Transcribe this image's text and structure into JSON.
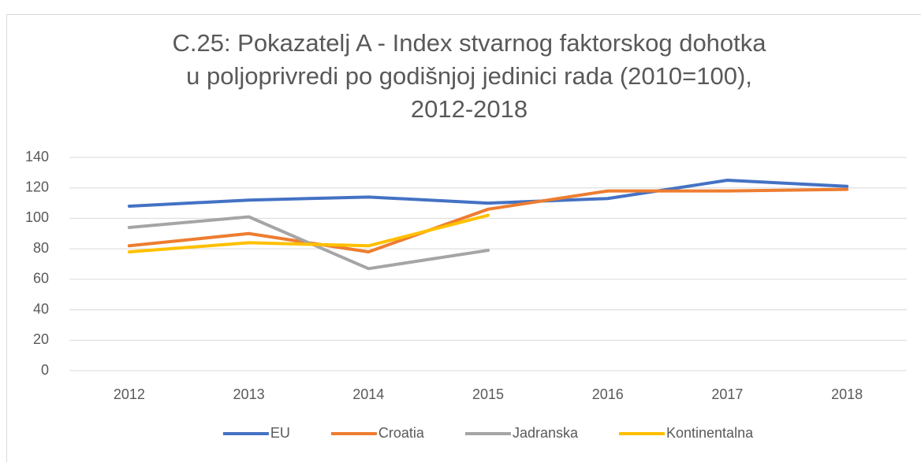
{
  "chart_data": {
    "type": "line",
    "title": "C.25: Pokazatelj A - Index stvarnog faktorskog dohotka u poljoprivredi po godišnjoj jedinici rada (2010=100), 2012-2018",
    "categories": [
      "2012",
      "2013",
      "2014",
      "2015",
      "2016",
      "2017",
      "2018"
    ],
    "series": [
      {
        "name": "EU",
        "color": "#4472c4",
        "values": [
          108,
          112,
          114,
          110,
          113,
          125,
          121
        ]
      },
      {
        "name": "Croatia",
        "color": "#ed7d31",
        "values": [
          82,
          90,
          78,
          106,
          118,
          118,
          119
        ]
      },
      {
        "name": "Jadranska",
        "color": "#a5a5a5",
        "values": [
          94,
          101,
          67,
          79,
          null,
          null,
          null
        ]
      },
      {
        "name": "Kontinentalna",
        "color": "#ffc000",
        "values": [
          78,
          84,
          82,
          102,
          null,
          null,
          null
        ]
      }
    ],
    "ylim": [
      0,
      140
    ],
    "yticks": [
      0,
      20,
      40,
      60,
      80,
      100,
      120,
      140
    ],
    "grid": true,
    "legend": "bottom"
  }
}
